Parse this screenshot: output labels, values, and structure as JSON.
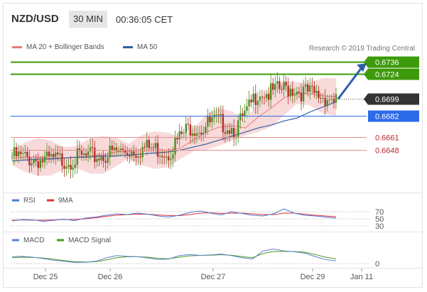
{
  "header": {
    "pair": "NZD/USD",
    "timeframe": "30 MIN",
    "time": "00:36:05 CET"
  },
  "legend": {
    "bollinger": "MA 20 + Bollinger Bands",
    "ma50": "MA 50",
    "credit": "Research © 2019 Trading Central"
  },
  "colors": {
    "up": "#4a8f1f",
    "down": "#b62a2a",
    "ma50": "#2f5fa8",
    "bollinger": "#e77a7a",
    "support_line": "#ec8d8d",
    "pivot_line": "#2c6ae9",
    "resistance_line": "#3d9a0a",
    "rsi": "#4b77d3",
    "rsi_ma": "#e63131",
    "macd": "#5b82d6",
    "macd_signal": "#4e9a1b",
    "arrow": "#2f5fa8"
  },
  "chart_data": [
    {
      "type": "candlestick",
      "title": "NZD/USD",
      "x_ticks": [
        "Dec 25",
        "Dec 26",
        "Dec 27",
        "Dec 29",
        "Jan 11"
      ],
      "levels": [
        {
          "value": 0.6736,
          "label": "0.6736",
          "kind": "resistance"
        },
        {
          "value": 0.6724,
          "label": "0.6724",
          "kind": "resistance"
        },
        {
          "value": 0.6699,
          "label": "0.6699",
          "kind": "current"
        },
        {
          "value": 0.6682,
          "label": "0.6682",
          "kind": "pivot"
        },
        {
          "value": 0.6661,
          "label": "0.6661",
          "kind": "support"
        },
        {
          "value": 0.6648,
          "label": "0.6648",
          "kind": "support"
        }
      ],
      "y_range": [
        0.6612,
        0.6748
      ],
      "series": [
        {
          "name": "MA 50",
          "values": [
            0.6637,
            0.6638,
            0.6639,
            0.6639,
            0.664,
            0.6641,
            0.6641,
            0.6642,
            0.6642,
            0.6643,
            0.6644,
            0.6645,
            0.6646,
            0.6648,
            0.6651,
            0.6654,
            0.6658,
            0.6662,
            0.6666,
            0.667,
            0.6673,
            0.6677,
            0.668,
            0.6686,
            0.6691,
            0.6696
          ]
        },
        {
          "name": "MA 20",
          "values": [
            0.664,
            0.6641,
            0.6641,
            0.664,
            0.664,
            0.6641,
            0.6642,
            0.6643,
            0.6646,
            0.6647,
            0.6648,
            0.6648,
            0.6648,
            0.665,
            0.6658,
            0.6666,
            0.6671,
            0.6672,
            0.667,
            0.6681,
            0.669,
            0.67,
            0.6705,
            0.6704,
            0.6702,
            0.6701
          ]
        }
      ],
      "candles_close": [
        0.6642,
        0.664,
        0.6639,
        0.6637,
        0.6638,
        0.6638,
        0.664,
        0.6641,
        0.6642,
        0.6645,
        0.6647,
        0.6648,
        0.665,
        0.6649,
        0.6646,
        0.666,
        0.6672,
        0.667,
        0.6676,
        0.6674,
        0.6669,
        0.6684,
        0.6707,
        0.6704,
        0.6708,
        0.671,
        0.6706,
        0.6703,
        0.6701,
        0.6699
      ]
    },
    {
      "type": "line",
      "title": "RSI",
      "series": [
        {
          "name": "RSI",
          "values": [
            44,
            48,
            47,
            43,
            46,
            49,
            45,
            52,
            55,
            60,
            64,
            62,
            66,
            63,
            58,
            55,
            60,
            68,
            72,
            66,
            61,
            70,
            65,
            60,
            58,
            64,
            78,
            66,
            60,
            58,
            55,
            52
          ]
        },
        {
          "name": "9MA",
          "values": [
            46,
            47,
            46,
            46,
            47,
            48,
            48,
            50,
            53,
            57,
            60,
            62,
            63,
            63,
            61,
            59,
            59,
            62,
            66,
            67,
            65,
            66,
            66,
            64,
            62,
            62,
            66,
            66,
            63,
            60,
            58,
            56
          ]
        }
      ],
      "y_ticks": [
        "70",
        "50",
        "30"
      ]
    },
    {
      "type": "line",
      "title": "MACD",
      "series": [
        {
          "name": "MACD",
          "values": [
            3,
            3.2,
            2.8,
            2.2,
            1.5,
            1,
            0.5,
            0.6,
            1,
            2.5,
            3.5,
            3.2,
            3,
            2.5,
            1.8,
            2,
            3.5,
            4,
            3.6,
            3.8,
            4.2,
            3.5,
            2.6,
            2,
            5.5,
            6.4,
            5.6,
            5.2,
            4.6,
            3.1,
            1.8,
            1.2
          ]
        },
        {
          "name": "MACD Signal",
          "values": [
            2.6,
            2.8,
            2.7,
            2.4,
            1.9,
            1.3,
            0.8,
            0.7,
            0.8,
            1.6,
            2.6,
            3,
            3,
            2.8,
            2.3,
            2.1,
            2.8,
            3.4,
            3.6,
            3.7,
            3.9,
            3.7,
            3.1,
            2.6,
            4.4,
            5.3,
            5.4,
            5.3,
            5,
            4,
            2.8,
            2.1
          ]
        }
      ],
      "y_ticks": [
        "0"
      ]
    }
  ]
}
